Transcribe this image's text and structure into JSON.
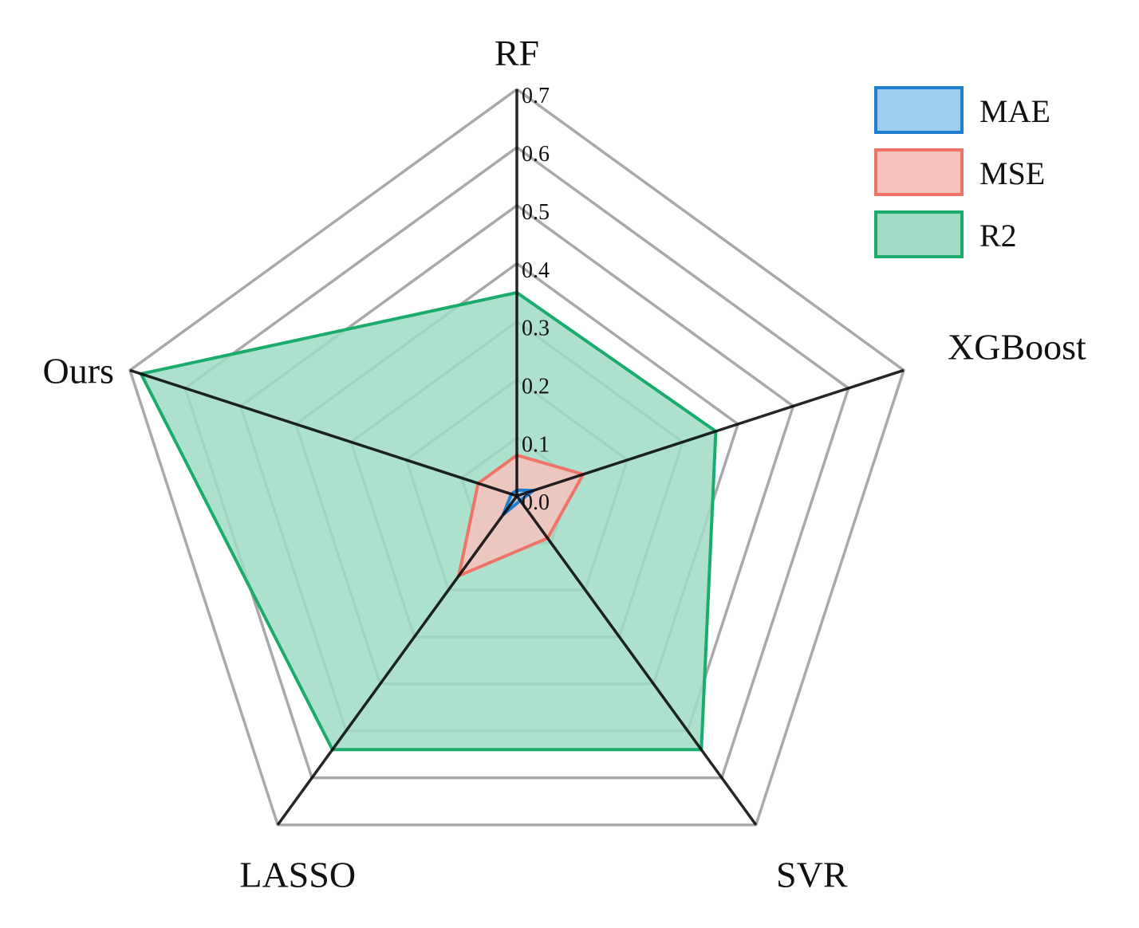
{
  "chart_data": {
    "type": "radar",
    "axes": [
      "RF",
      "XGBoost",
      "SVR",
      "LASSO",
      "Ours"
    ],
    "ticks": [
      "0.0",
      "0.1",
      "0.2",
      "0.3",
      "0.4",
      "0.5",
      "0.6",
      "0.7"
    ],
    "rlim": [
      0.0,
      0.7
    ],
    "grid": true,
    "legend_position": "top-right",
    "series": [
      {
        "name": "R2",
        "values": [
          0.35,
          0.36,
          0.54,
          0.54,
          0.68
        ],
        "fill": "#9fdcc5",
        "stroke": "#1aab6d"
      },
      {
        "name": "MSE",
        "values": [
          0.07,
          0.12,
          0.09,
          0.17,
          0.07
        ],
        "fill": "#f6c2bc",
        "stroke": "#ee7467"
      },
      {
        "name": "MAE",
        "values": [
          0.01,
          0.03,
          0.01,
          0.04,
          0.01
        ],
        "fill": "#9fcdee",
        "stroke": "#1f7fcc"
      }
    ],
    "legend_order": [
      "MAE",
      "MSE",
      "R2"
    ]
  }
}
